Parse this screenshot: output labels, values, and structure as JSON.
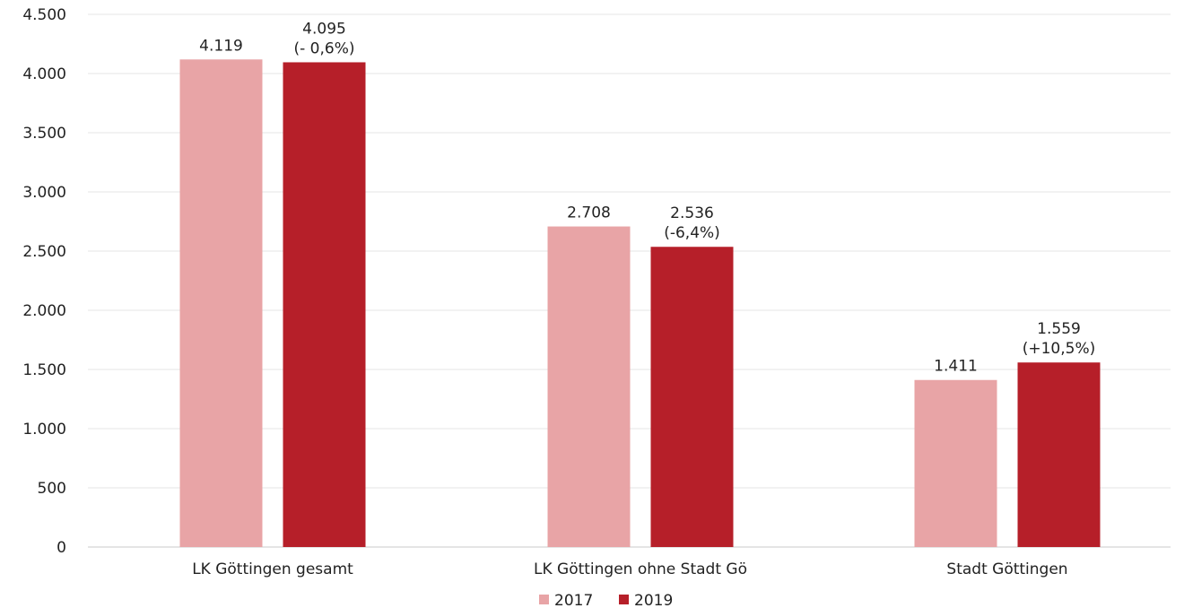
{
  "chart_data": {
    "type": "bar",
    "categories": [
      "LK Göttingen gesamt",
      "LK Göttingen ohne Stadt Gö",
      "Stadt Göttingen"
    ],
    "series": [
      {
        "name": "2017",
        "color": "#e8a4a6",
        "values": [
          4119,
          2708,
          1411
        ],
        "labels": [
          [
            "4.119"
          ],
          [
            "2.708"
          ],
          [
            "1.411"
          ]
        ]
      },
      {
        "name": "2019",
        "color": "#b61f29",
        "values": [
          4095,
          2536,
          1559
        ],
        "labels": [
          [
            "4.095",
            "(- 0,6%)"
          ],
          [
            "2.536",
            "(-6,4%)"
          ],
          [
            "1.559",
            "(+10,5%)"
          ]
        ]
      }
    ],
    "ylim": [
      0,
      4500
    ],
    "yticks": [
      {
        "value": 0,
        "label": "0"
      },
      {
        "value": 500,
        "label": "500"
      },
      {
        "value": 1000,
        "label": "1.000"
      },
      {
        "value": 1500,
        "label": "1.500"
      },
      {
        "value": 2000,
        "label": "2.000"
      },
      {
        "value": 2500,
        "label": "2.500"
      },
      {
        "value": 3000,
        "label": "3.000"
      },
      {
        "value": 3500,
        "label": "3.500"
      },
      {
        "value": 4000,
        "label": "4.000"
      },
      {
        "value": 4500,
        "label": "4.500"
      }
    ],
    "grid": true,
    "legend_position": "bottom-center",
    "title": "",
    "xlabel": "",
    "ylabel": ""
  }
}
